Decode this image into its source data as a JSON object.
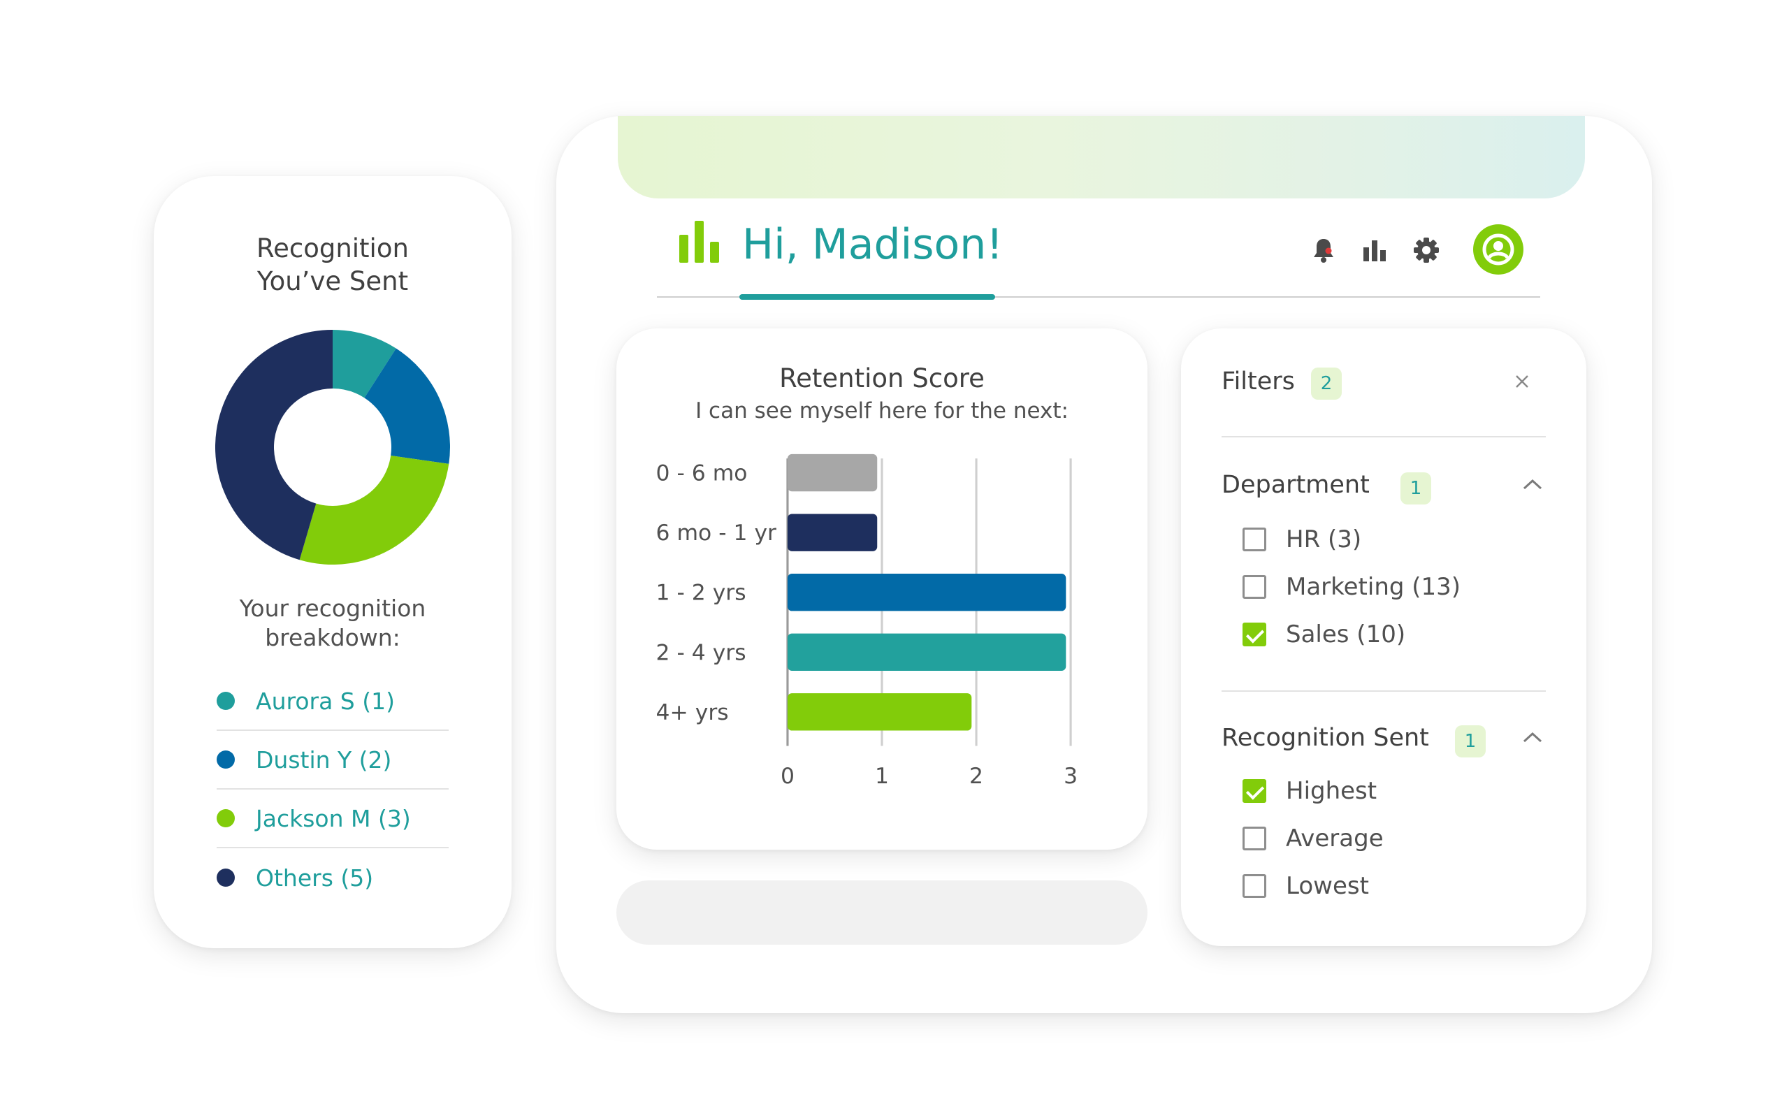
{
  "recognition": {
    "title_line1": "Recognition",
    "title_line2": "You’ve Sent",
    "subtitle_line1": "Your recognition",
    "subtitle_line2": "breakdown:",
    "legend": [
      {
        "label": "Aurora S (1)",
        "color": "#1f9e9c",
        "value": 1
      },
      {
        "label": "Dustin Y (2)",
        "color": "#026aa7",
        "value": 2
      },
      {
        "label": "Jackson M (3)",
        "color": "#82cc0a",
        "value": 3
      },
      {
        "label": "Others (5)",
        "color": "#1e2f5e",
        "value": 5
      }
    ]
  },
  "header": {
    "greeting": "Hi, Madison!",
    "icons": [
      "bar-chart-logo-icon",
      "bell-icon",
      "stats-icon",
      "gear-icon",
      "user-icon"
    ],
    "accent_color": "#1f9e9c",
    "logo_color": "#82cc0a",
    "notification_color": "#e03a3a"
  },
  "chart_data": {
    "type": "bar",
    "orientation": "horizontal",
    "title": "Retention Score",
    "subtitle": "I can see myself here for the next:",
    "categories": [
      "0 - 6 mo",
      "6 mo - 1 yr",
      "1 - 2 yrs",
      "2 - 4 yrs",
      "4+ yrs"
    ],
    "values": [
      0.95,
      0.95,
      2.95,
      2.95,
      1.95
    ],
    "colors": [
      "#a7a7a7",
      "#1e2f5e",
      "#026aa7",
      "#22a19d",
      "#82cc0a"
    ],
    "xticks": [
      0,
      1,
      2,
      3
    ],
    "xlim": [
      0,
      3
    ],
    "grid": true
  },
  "filters": {
    "title": "Filters",
    "count": "2",
    "groups": [
      {
        "title": "Department",
        "count": "1",
        "options": [
          {
            "label": "HR (3)",
            "checked": false
          },
          {
            "label": "Marketing (13)",
            "checked": false
          },
          {
            "label": "Sales (10)",
            "checked": true
          }
        ]
      },
      {
        "title": "Recognition Sent",
        "count": "1",
        "options": [
          {
            "label": "Highest",
            "checked": true
          },
          {
            "label": "Average",
            "checked": false
          },
          {
            "label": "Lowest",
            "checked": false
          }
        ]
      }
    ]
  }
}
